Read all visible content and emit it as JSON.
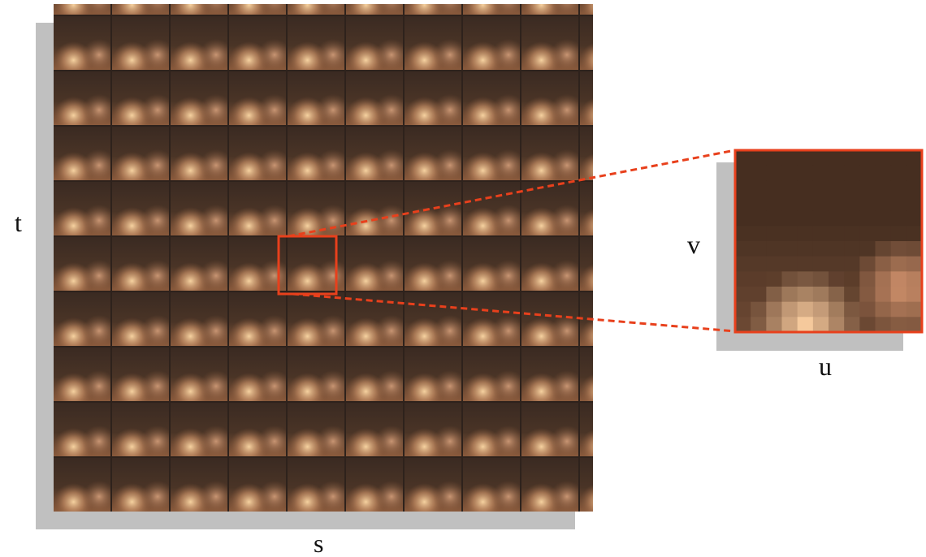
{
  "axes": {
    "t": "t",
    "s": "s",
    "v": "v",
    "u": "u"
  }
}
